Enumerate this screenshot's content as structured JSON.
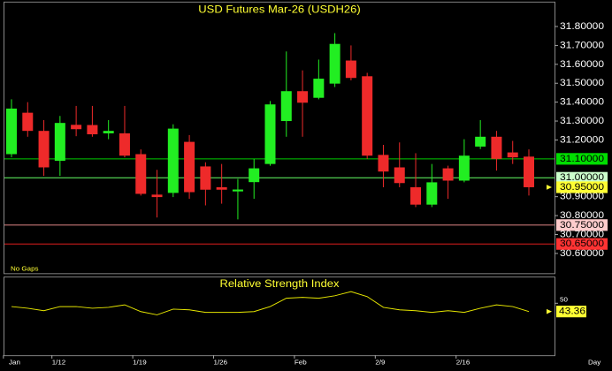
{
  "chart_data": [
    {
      "type": "candlestick",
      "title": "USD Futures Mar-26 (USDH26)",
      "note": "No Gaps",
      "period": "Day",
      "categories": [
        "Jan",
        null,
        null,
        "1/12",
        null,
        null,
        null,
        null,
        "1/19",
        null,
        null,
        null,
        null,
        "1/26",
        null,
        null,
        null,
        null,
        "Feb",
        null,
        null,
        null,
        null,
        "2/9",
        null,
        null,
        null,
        null,
        "2/16",
        null,
        null,
        null,
        null
      ],
      "up_color": "#22ee22",
      "down_color": "#ee2a2a",
      "series": [
        {
          "name": "USDH26",
          "open": [
            31.125,
            31.344,
            31.248,
            31.09,
            31.28,
            31.279,
            31.235,
            31.235,
            31.125,
            30.911,
            30.92,
            31.19,
            31.06,
            30.95,
            30.928,
            30.977,
            31.073,
            31.3,
            31.458,
            31.423,
            31.498,
            31.62,
            31.537,
            31.121,
            31.055,
            30.95,
            30.858,
            31.05,
            30.985,
            31.165,
            31.217,
            31.134,
            31.112
          ],
          "high": [
            31.415,
            31.4,
            31.305,
            31.327,
            31.38,
            31.38,
            31.305,
            31.38,
            31.15,
            31.042,
            31.283,
            31.226,
            31.082,
            31.073,
            30.994,
            31.1,
            31.406,
            31.668,
            31.568,
            31.625,
            31.765,
            31.7,
            31.555,
            31.174,
            31.187,
            31.13,
            31.073,
            31.064,
            31.204,
            31.305,
            31.248,
            31.195,
            31.15
          ],
          "low": [
            31.108,
            31.217,
            31.01,
            31.01,
            31.22,
            31.217,
            31.204,
            31.108,
            30.906,
            30.79,
            30.898,
            30.889,
            30.854,
            30.863,
            30.78,
            30.889,
            31.064,
            31.217,
            31.217,
            31.415,
            31.48,
            31.515,
            31.1,
            30.95,
            30.95,
            30.845,
            30.845,
            30.889,
            30.976,
            31.152,
            31.038,
            31.073,
            30.906
          ],
          "close": [
            31.366,
            31.248,
            31.055,
            31.29,
            31.257,
            31.23,
            31.248,
            31.117,
            30.915,
            30.898,
            31.26,
            30.924,
            30.937,
            30.937,
            30.938,
            31.05,
            31.388,
            31.458,
            31.397,
            31.524,
            31.708,
            31.528,
            31.117,
            31.033,
            30.972,
            30.858,
            30.976,
            30.985,
            31.117,
            31.217,
            31.1,
            31.108,
            30.95
          ]
        }
      ],
      "ylim": [
        30.495,
        31.927
      ],
      "yticks": [
        {
          "value": 30.6,
          "label": "30.60000"
        },
        {
          "value": 30.7,
          "label": "30.70000"
        },
        {
          "value": 30.8,
          "label": "30.80000"
        },
        {
          "value": 30.9,
          "label": "30.90000"
        },
        {
          "value": 31.2,
          "label": "31.20000"
        },
        {
          "value": 31.3,
          "label": "31.30000"
        },
        {
          "value": 31.4,
          "label": "31.40000"
        },
        {
          "value": 31.5,
          "label": "31.50000"
        },
        {
          "value": 31.6,
          "label": "31.60000"
        },
        {
          "value": 31.7,
          "label": "31.70000"
        },
        {
          "value": 31.8,
          "label": "31.80000"
        }
      ],
      "levels": [
        {
          "value": 31.1,
          "label": "31.10000",
          "color": "#00cc00",
          "label_color": "#00dd00"
        },
        {
          "value": 31.0,
          "label": "31.00000",
          "color": "#66ff66",
          "label_color": "#ccffcc"
        },
        {
          "value": 30.75,
          "label": "30.75000",
          "color": "#ff9999",
          "label_color": "#ffcccc"
        },
        {
          "value": 30.65,
          "label": "30.65000",
          "color": "#ff2222",
          "label_color": "#ff3333"
        }
      ],
      "last": {
        "value": 30.95,
        "label": "30.95000",
        "color": "#ffff33"
      }
    },
    {
      "type": "line",
      "title": "Relative Strength Index",
      "series": [
        {
          "name": "RSI",
          "color": "#e8e800",
          "values": [
            47.3,
            46.0,
            44.0,
            47.3,
            47.3,
            46.0,
            46.7,
            48.7,
            43.3,
            40.7,
            45.3,
            44.7,
            42.7,
            42.7,
            42.7,
            43.3,
            47.3,
            54.0,
            54.7,
            54.0,
            56.0,
            59.3,
            55.3,
            46.7,
            44.7,
            44.0,
            42.7,
            44.0,
            42.7,
            46.0,
            48.7,
            47.3,
            43.36
          ],
          "value_labels": [
            null,
            null,
            null,
            null,
            null,
            null,
            null,
            null,
            null,
            null,
            null,
            null,
            null,
            null,
            null,
            null,
            null,
            null,
            null,
            null,
            null,
            null,
            null,
            null,
            null,
            null,
            null,
            null,
            null,
            null,
            null,
            null,
            "43.36"
          ]
        }
      ],
      "ylim": [
        9,
        70
      ],
      "yticks": [
        50
      ]
    }
  ]
}
